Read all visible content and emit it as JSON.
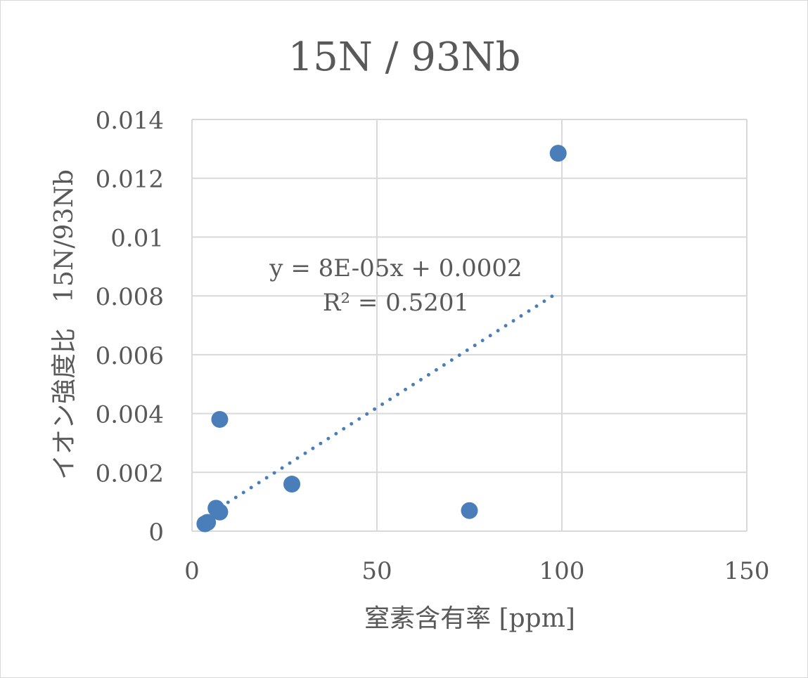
{
  "chart_data": {
    "type": "scatter",
    "title": "15N / 93Nb",
    "xlabel": "窒素含有率 [ppm]",
    "ylabel": "イオン強度比　15N/93Nb",
    "xlim": [
      0,
      150
    ],
    "ylim": [
      0,
      0.014
    ],
    "x_ticks": [
      0,
      50,
      100,
      150
    ],
    "x_tick_labels": [
      "0",
      "50",
      "100",
      "150"
    ],
    "y_ticks": [
      0,
      0.002,
      0.004,
      0.006,
      0.008,
      0.01,
      0.012,
      0.014
    ],
    "y_tick_labels": [
      "0",
      "0.002",
      "0.004",
      "0.006",
      "0.008",
      "0.01",
      "0.012",
      "0.014"
    ],
    "grid": true,
    "legend": "none",
    "series": [
      {
        "color": "#4a7ebb",
        "points": [
          {
            "x": 3.5,
            "y": 0.00025
          },
          {
            "x": 4.2,
            "y": 0.0003
          },
          {
            "x": 6.5,
            "y": 0.00078
          },
          {
            "x": 7.5,
            "y": 0.00065
          },
          {
            "x": 7.5,
            "y": 0.0038
          },
          {
            "x": 27,
            "y": 0.0016
          },
          {
            "x": 75,
            "y": 0.0007
          },
          {
            "x": 99,
            "y": 0.01285
          }
        ]
      }
    ],
    "trendline": {
      "type": "linear",
      "style": "dotted",
      "color": "#4a7ebb",
      "slope": 8e-05,
      "intercept": 0.0002,
      "x_range": [
        3.5,
        99
      ],
      "equation_label": "y = 8E-05x + 0.0002",
      "r2_label": "R² = 0.5201"
    },
    "colors": {
      "gridline": "#d9d9d9",
      "text": "#595959",
      "marker": "#4a7ebb"
    }
  }
}
